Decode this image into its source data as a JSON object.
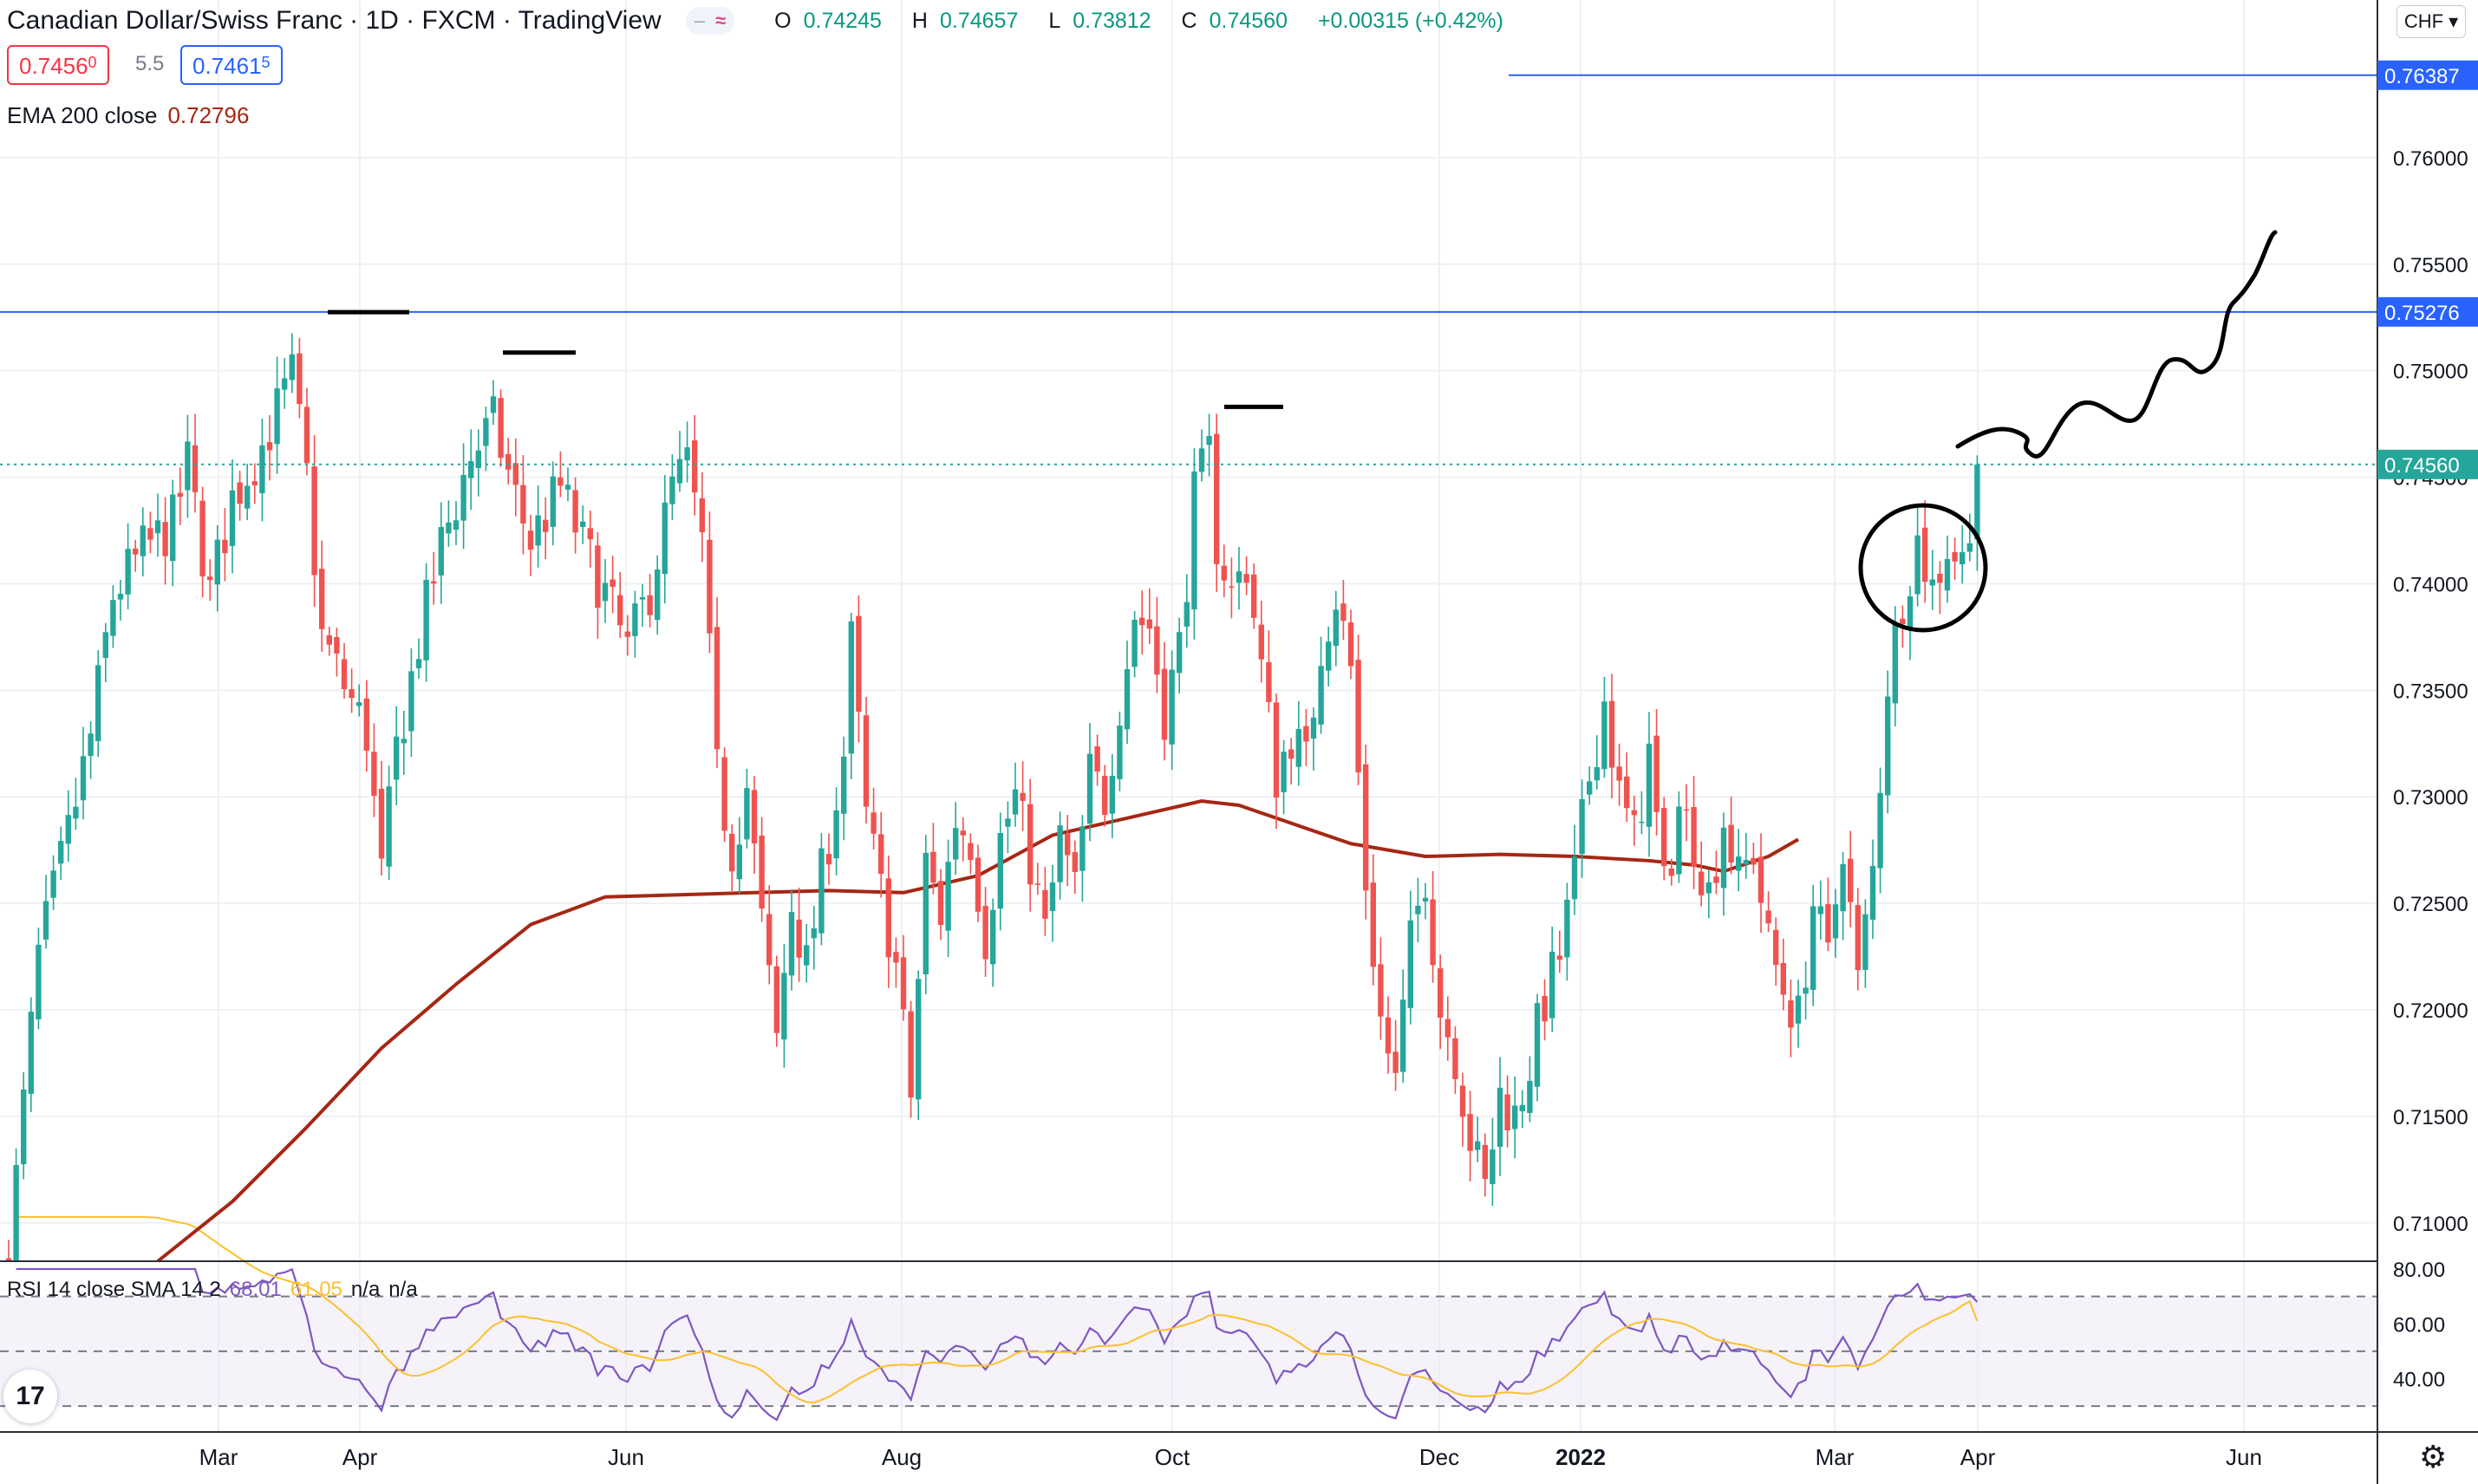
{
  "header": {
    "symbol": "Canadian Dollar/Swiss Franc · 1D · FXCM · TradingView",
    "pill_dash": "‒",
    "pill_wave": "≈",
    "ohlc": {
      "o_label": "O",
      "o": "0.74245",
      "h_label": "H",
      "h": "0.74657",
      "l_label": "L",
      "l": "0.73812",
      "c_label": "C",
      "c": "0.74560",
      "change": "+0.00315 (+0.42%)"
    },
    "sell_main": "0.7456",
    "sell_sup": "0",
    "spread": "5.5",
    "buy_main": "0.7461",
    "buy_sup": "5",
    "ema_label": "EMA 200 close",
    "ema_value": "0.72796",
    "currency_button": "CHF ▾"
  },
  "rsi_legend": {
    "label": "RSI 14 close SMA 14 2",
    "rsi_value": "68.01",
    "sma_value": "61.05",
    "na1": "n/a",
    "na2": "n/a"
  },
  "logo_text": "17",
  "settings_icon": "gear-icon",
  "chart_data": {
    "type": "candlestick",
    "title": "Canadian Dollar/Swiss Franc · 1D · FXCM · TradingView",
    "ylim": [
      0.7082,
      0.7674
    ],
    "price_ticks": [
      "0.76000",
      "0.75500",
      "0.75000",
      "0.74500",
      "0.74000",
      "0.73500",
      "0.73000",
      "0.72500",
      "0.72000",
      "0.71500",
      "0.71000"
    ],
    "x_ticks": [
      "Mar",
      "Apr",
      "Jun",
      "Aug",
      "Oct",
      "Dec",
      "2022",
      "Mar",
      "Apr",
      "Jun"
    ],
    "price_labels": {
      "top_line": "0.76387",
      "resistance": "0.75276",
      "last": "0.74560"
    },
    "resistance_level": 0.75276,
    "last_price": 0.7456,
    "close_path": [
      [
        0,
        0.7086
      ],
      [
        4,
        0.7225
      ],
      [
        8,
        0.7282
      ],
      [
        11,
        0.7328
      ],
      [
        14,
        0.7395
      ],
      [
        18,
        0.7415
      ],
      [
        22,
        0.7428
      ],
      [
        24,
        0.7456
      ],
      [
        27,
        0.7395
      ],
      [
        30,
        0.744
      ],
      [
        34,
        0.7465
      ],
      [
        38,
        0.7497
      ],
      [
        40,
        0.745
      ],
      [
        42,
        0.7375
      ],
      [
        45,
        0.7352
      ],
      [
        48,
        0.733
      ],
      [
        50,
        0.7262
      ],
      [
        52,
        0.7322
      ],
      [
        55,
        0.7373
      ],
      [
        58,
        0.7418
      ],
      [
        62,
        0.746
      ],
      [
        65,
        0.7475
      ],
      [
        68,
        0.744
      ],
      [
        70,
        0.742
      ],
      [
        74,
        0.7445
      ],
      [
        77,
        0.7418
      ],
      [
        80,
        0.7395
      ],
      [
        83,
        0.7368
      ],
      [
        86,
        0.7398
      ],
      [
        89,
        0.7445
      ],
      [
        91,
        0.7455
      ],
      [
        93,
        0.7418
      ],
      [
        95,
        0.731
      ],
      [
        97,
        0.7275
      ],
      [
        99,
        0.7305
      ],
      [
        101,
        0.724
      ],
      [
        103,
        0.7185
      ],
      [
        105,
        0.725
      ],
      [
        107,
        0.722
      ],
      [
        109,
        0.7262
      ],
      [
        112,
        0.732
      ],
      [
        113,
        0.7372
      ],
      [
        115,
        0.729
      ],
      [
        117,
        0.7255
      ],
      [
        119,
        0.722
      ],
      [
        121,
        0.716
      ],
      [
        123,
        0.7268
      ],
      [
        125,
        0.7245
      ],
      [
        127,
        0.729
      ],
      [
        129,
        0.728
      ],
      [
        131,
        0.7235
      ],
      [
        133,
        0.728
      ],
      [
        135,
        0.73
      ],
      [
        137,
        0.727
      ],
      [
        139,
        0.7235
      ],
      [
        141,
        0.728
      ],
      [
        143,
        0.7255
      ],
      [
        145,
        0.731
      ],
      [
        147,
        0.73
      ],
      [
        149,
        0.7345
      ],
      [
        151,
        0.7385
      ],
      [
        153,
        0.738
      ],
      [
        155,
        0.734
      ],
      [
        157,
        0.737
      ],
      [
        159,
        0.744
      ],
      [
        161,
        0.746
      ],
      [
        162,
        0.742
      ],
      [
        164,
        0.7395
      ],
      [
        166,
        0.741
      ],
      [
        168,
        0.736
      ],
      [
        170,
        0.731
      ],
      [
        172,
        0.733
      ],
      [
        174,
        0.7315
      ],
      [
        176,
        0.7372
      ],
      [
        178,
        0.7395
      ],
      [
        180,
        0.736
      ],
      [
        182,
        0.726
      ],
      [
        184,
        0.7195
      ],
      [
        186,
        0.7165
      ],
      [
        188,
        0.723
      ],
      [
        190,
        0.7265
      ],
      [
        192,
        0.72
      ],
      [
        194,
        0.718
      ],
      [
        196,
        0.714
      ],
      [
        198,
        0.7115
      ],
      [
        200,
        0.716
      ],
      [
        202,
        0.715
      ],
      [
        204,
        0.7175
      ],
      [
        206,
        0.7205
      ],
      [
        208,
        0.7225
      ],
      [
        210,
        0.7262
      ],
      [
        212,
        0.731
      ],
      [
        214,
        0.7345
      ],
      [
        216,
        0.73
      ],
      [
        218,
        0.728
      ],
      [
        220,
        0.732
      ],
      [
        222,
        0.7255
      ],
      [
        224,
        0.7295
      ],
      [
        226,
        0.728
      ],
      [
        228,
        0.7255
      ],
      [
        230,
        0.729
      ],
      [
        232,
        0.726
      ],
      [
        234,
        0.7275
      ],
      [
        236,
        0.723
      ],
      [
        238,
        0.721
      ],
      [
        240,
        0.7195
      ],
      [
        242,
        0.725
      ],
      [
        244,
        0.7222
      ],
      [
        246,
        0.728
      ],
      [
        248,
        0.7212
      ],
      [
        250,
        0.7265
      ],
      [
        252,
        0.7355
      ],
      [
        254,
        0.7395
      ],
      [
        256,
        0.742
      ],
      [
        258,
        0.7398
      ],
      [
        260,
        0.7418
      ],
      [
        262,
        0.741
      ],
      [
        264,
        0.7456
      ]
    ],
    "ema200": [
      [
        20,
        0.7082
      ],
      [
        30,
        0.711
      ],
      [
        40,
        0.7145
      ],
      [
        50,
        0.7182
      ],
      [
        60,
        0.7212
      ],
      [
        70,
        0.724
      ],
      [
        80,
        0.7253
      ],
      [
        90,
        0.7254
      ],
      [
        100,
        0.7255
      ],
      [
        110,
        0.7256
      ],
      [
        120,
        0.7255
      ],
      [
        130,
        0.7263
      ],
      [
        140,
        0.7282
      ],
      [
        150,
        0.729
      ],
      [
        160,
        0.7298
      ],
      [
        165,
        0.7296
      ],
      [
        170,
        0.729
      ],
      [
        180,
        0.7278
      ],
      [
        190,
        0.7272
      ],
      [
        200,
        0.7273
      ],
      [
        210,
        0.7272
      ],
      [
        220,
        0.727
      ],
      [
        226,
        0.7268
      ],
      [
        230,
        0.7265
      ],
      [
        236,
        0.7272
      ],
      [
        240,
        0.728
      ]
    ],
    "rsi": {
      "ylim": [
        25,
        80
      ],
      "ticks": [
        "80.00",
        "60.00",
        "40.00"
      ],
      "bands": [
        30,
        50,
        70
      ],
      "rsi_value": 68.01,
      "sma_value": 61.05
    },
    "annotations": [
      "resistance-marks",
      "circle",
      "projected-path"
    ]
  }
}
